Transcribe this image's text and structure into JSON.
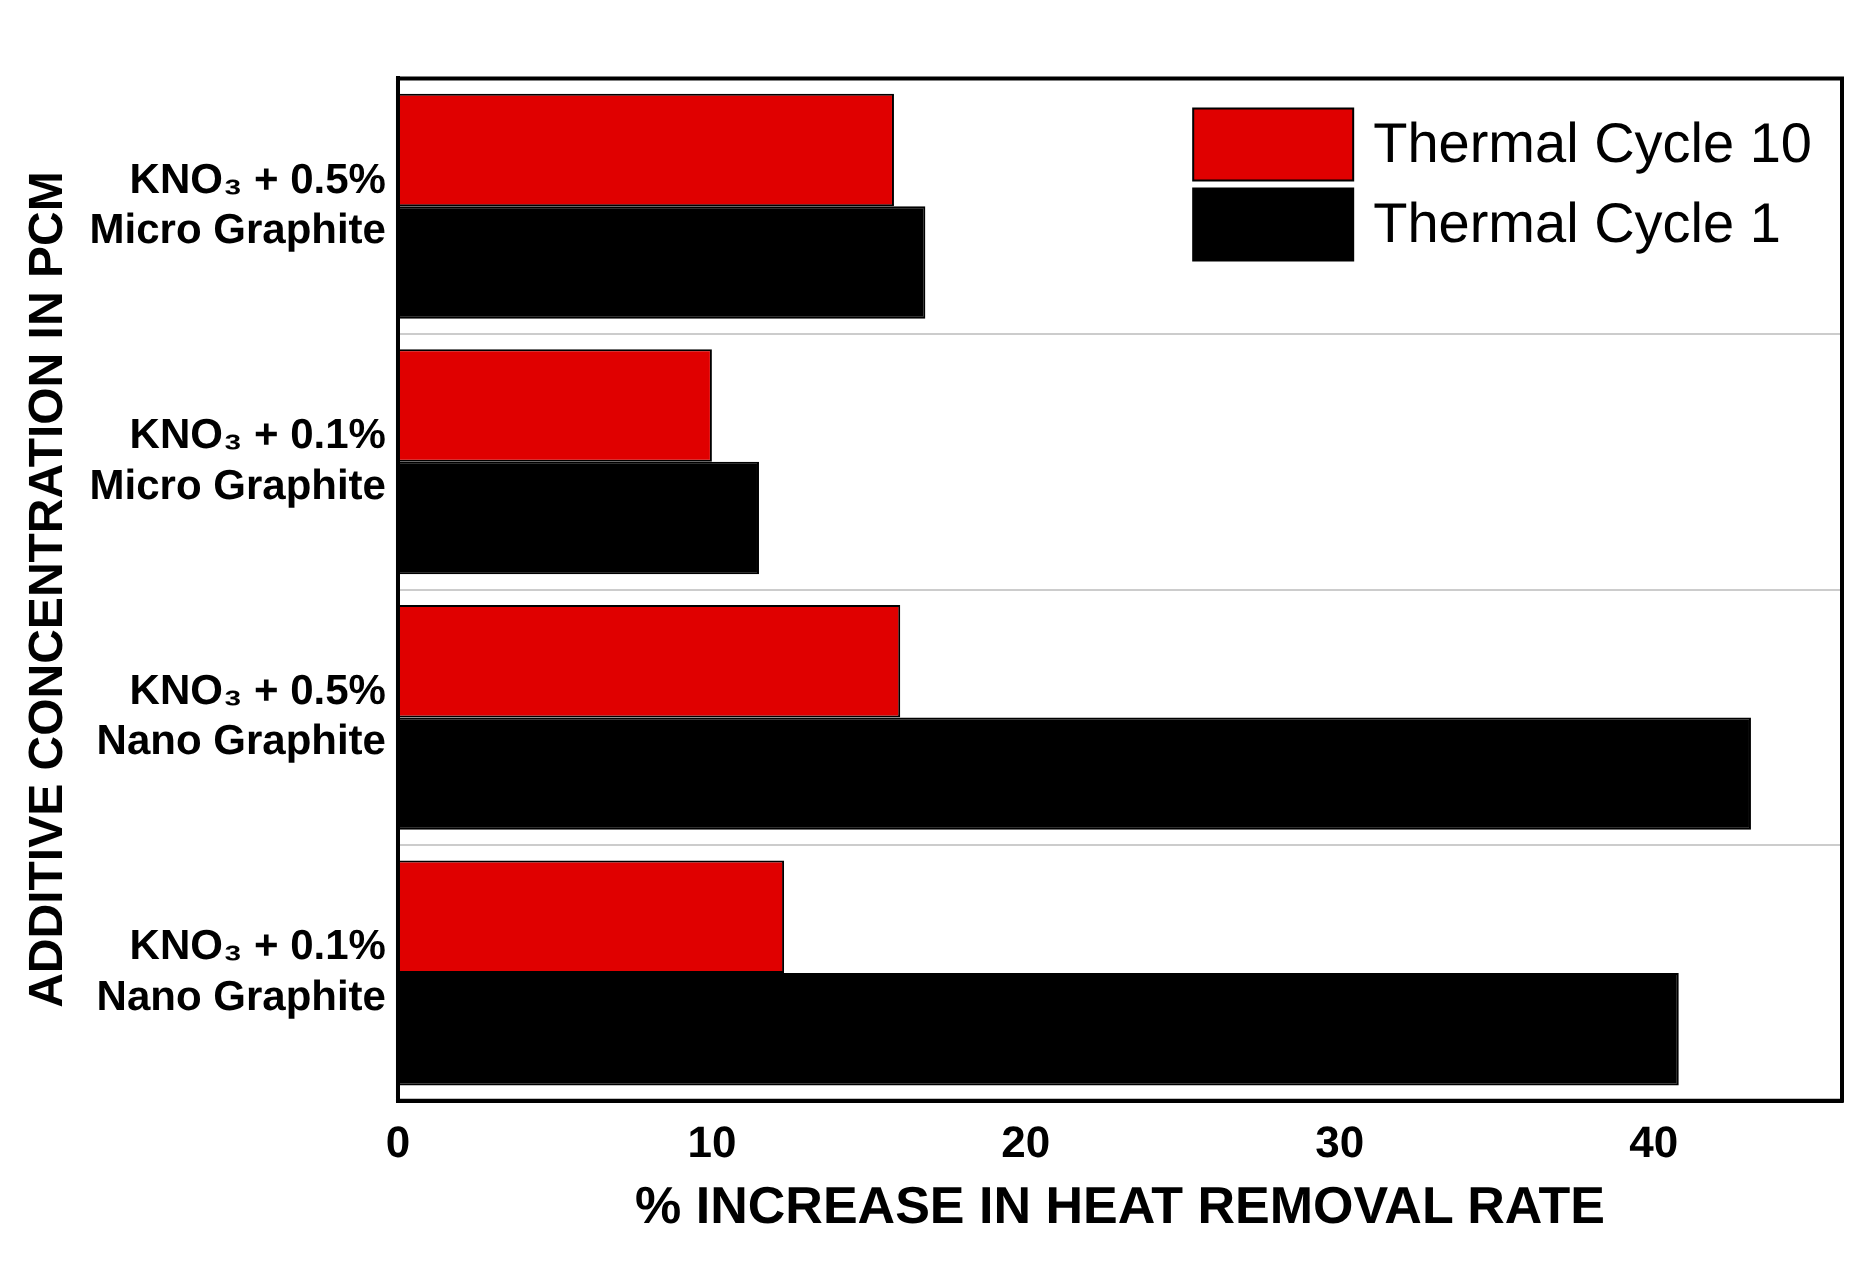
{
  "chart_data": {
    "type": "bar",
    "orientation": "horizontal",
    "xlabel": "% INCREASE IN HEAT REMOVAL RATE",
    "ylabel": "ADDITIVE CONCENTRATION IN PCM",
    "categories": [
      "KNO₃ + 0.5%\nMicro Graphite",
      "KNO₃ + 0.1%\nMicro Graphite",
      "KNO₃ + 0.5%\nNano Graphite",
      "KNO₃ + 0.1%\nNano Graphite"
    ],
    "series": [
      {
        "name": "Thermal Cycle 10",
        "color": "#e00000",
        "values": [
          15.8,
          10.0,
          16.0,
          12.3
        ]
      },
      {
        "name": "Thermal Cycle 1",
        "color": "#000000",
        "values": [
          16.8,
          11.5,
          43.1,
          40.8
        ]
      }
    ],
    "xlim": [
      0,
      46
    ],
    "xticks": [
      0,
      10,
      20,
      30,
      40
    ],
    "grid": "y",
    "legend": "top right"
  }
}
